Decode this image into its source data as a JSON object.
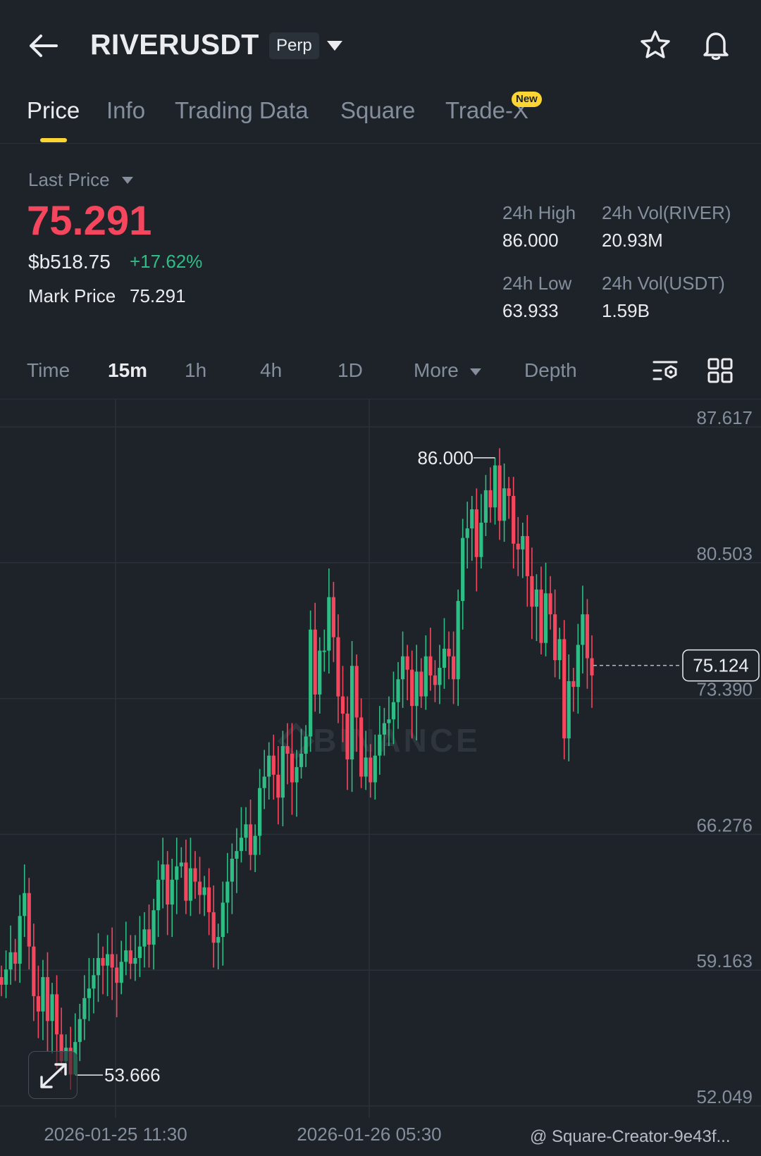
{
  "header": {
    "symbol": "RIVERUSDT",
    "contract_type": "Perp",
    "icons": [
      "back-arrow-icon",
      "caret-down-icon",
      "star-icon",
      "bell-icon"
    ]
  },
  "tabs": [
    {
      "label": "Price",
      "active": true
    },
    {
      "label": "Info"
    },
    {
      "label": "Trading Data"
    },
    {
      "label": "Square"
    },
    {
      "label": "Trade-X",
      "badge": "New"
    }
  ],
  "price": {
    "last_price_label": "Last Price",
    "last_price": "75.291",
    "usd_price": "$b518.75",
    "change_pct": "+17.62%",
    "mark_price_label": "Mark Price",
    "mark_price": "75.291"
  },
  "stats": {
    "high_label": "24h High",
    "high_value": "86.000",
    "low_label": "24h Low",
    "low_value": "63.933",
    "vol_river_label": "24h Vol(RIVER)",
    "vol_river_value": "20.93M",
    "vol_usdt_label": "24h Vol(USDT)",
    "vol_usdt_value": "1.59B"
  },
  "intervals": {
    "time": "Time",
    "m15": "15m",
    "h1": "1h",
    "h4": "4h",
    "d1": "1D",
    "more": "More",
    "depth": "Depth",
    "active": "15m"
  },
  "colors": {
    "background": "#1e2329",
    "up": "#2ebd85",
    "down": "#f6465d",
    "accent": "#fcd535",
    "muted": "#848e9c",
    "grid": "#2b3139"
  },
  "watermark": {
    "brand": "BINANCE",
    "footer": "@ Square-Creator-9e43f..."
  },
  "chart_data": {
    "type": "candlestick",
    "interval": "15m",
    "price_axis_labels": [
      "87.617",
      "80.503",
      "73.390",
      "66.276",
      "59.163",
      "52.049"
    ],
    "price_axis_values": [
      87.617,
      80.503,
      73.39,
      66.276,
      59.163,
      52.049
    ],
    "time_axis_labels": [
      "2026-01-25 11:30",
      "2026-01-26 05:30"
    ],
    "current_price_label": "75.124",
    "current_price": 75.124,
    "high_label": "86.000",
    "high": 86.0,
    "low_label": "53.666",
    "low": 53.666,
    "candle_closes": [
      58.4,
      59.2,
      60.1,
      59.5,
      62.0,
      63.2,
      60.4,
      57.8,
      57.0,
      58.8,
      56.5,
      57.9,
      55.8,
      54.4,
      55.1,
      53.7,
      55.4,
      56.6,
      57.7,
      58.2,
      58.9,
      59.8,
      59.4,
      60.0,
      59.3,
      58.5,
      59.6,
      60.2,
      59.5,
      59.8,
      60.4,
      61.3,
      60.5,
      62.3,
      63.9,
      64.7,
      62.6,
      63.9,
      64.6,
      64.8,
      62.8,
      64.5,
      63.8,
      63.1,
      63.5,
      62.2,
      60.6,
      60.9,
      62.7,
      63.8,
      65.0,
      65.4,
      66.1,
      66.8,
      65.2,
      66.2,
      68.7,
      69.3,
      70.4,
      69.4,
      68.2,
      70.9,
      70.5,
      69.0,
      69.8,
      70.5,
      71.4,
      77.0,
      73.6,
      75.9,
      75.9,
      78.7,
      76.6,
      73.5,
      72.6,
      70.2,
      75.1,
      72.4,
      69.3,
      70.3,
      69.0,
      70.4,
      71.5,
      72.1,
      72.3,
      73.2,
      74.4,
      75.6,
      74.9,
      73.0,
      74.8,
      73.5,
      75.6,
      74.6,
      74.1,
      75.0,
      76.0,
      75.6,
      74.4,
      78.5,
      81.8,
      82.3,
      83.3,
      80.8,
      82.6,
      84.3,
      83.4,
      85.6,
      82.7,
      84.4,
      84.0,
      81.5,
      81.2,
      81.9,
      79.8,
      78.2,
      79.1,
      76.3,
      78.9,
      77.8,
      75.4,
      76.5,
      71.3,
      74.3,
      74.0,
      76.2,
      77.8,
      75.5,
      74.6
    ]
  }
}
